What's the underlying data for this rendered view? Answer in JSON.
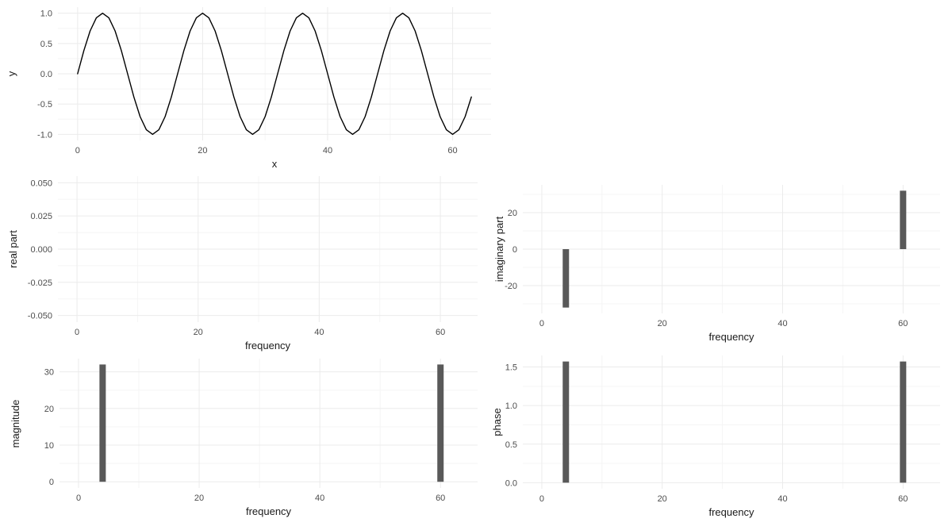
{
  "colors": {
    "background": "#ffffff",
    "bar_fill": "#595959",
    "line_stroke": "#000000",
    "grid_major": "#ebebeb",
    "grid_minor": "#f5f5f5",
    "tick_label": "#4d4d4d",
    "axis_title": "#1a1a1a"
  },
  "chart_data": [
    {
      "id": "wave",
      "type": "line",
      "xlabel": "x",
      "ylabel": "y",
      "xlim": [
        -3.15,
        66.15
      ],
      "ylim": [
        -1.1,
        1.1
      ],
      "xticks": [
        0,
        20,
        40,
        60
      ],
      "xtick_labels": [
        "0",
        "20",
        "40",
        "60"
      ],
      "xticks_minor": [
        10,
        30,
        50
      ],
      "yticks": [
        -1.0,
        -0.5,
        0.0,
        0.5,
        1.0
      ],
      "ytick_labels": [
        "-1.0",
        "-0.5",
        "0.0",
        "0.5",
        "1.0"
      ],
      "yticks_minor": [
        -0.75,
        -0.25,
        0.25,
        0.75
      ],
      "x": [
        0,
        1,
        2,
        3,
        4,
        5,
        6,
        7,
        8,
        9,
        10,
        11,
        12,
        13,
        14,
        15,
        16,
        17,
        18,
        19,
        20,
        21,
        22,
        23,
        24,
        25,
        26,
        27,
        28,
        29,
        30,
        31,
        32,
        33,
        34,
        35,
        36,
        37,
        38,
        39,
        40,
        41,
        42,
        43,
        44,
        45,
        46,
        47,
        48,
        49,
        50,
        51,
        52,
        53,
        54,
        55,
        56,
        57,
        58,
        59,
        60,
        61,
        62,
        63
      ],
      "y": [
        0,
        0.3827,
        0.7071,
        0.9239,
        1,
        0.9239,
        0.7071,
        0.3827,
        0,
        -0.3827,
        -0.7071,
        -0.9239,
        -1,
        -0.9239,
        -0.7071,
        -0.3827,
        0,
        0.3827,
        0.7071,
        0.9239,
        1,
        0.9239,
        0.7071,
        0.3827,
        0,
        -0.3827,
        -0.7071,
        -0.9239,
        -1,
        -0.9239,
        -0.7071,
        -0.3827,
        0,
        0.3827,
        0.7071,
        0.9239,
        1,
        0.9239,
        0.7071,
        0.3827,
        0,
        -0.3827,
        -0.7071,
        -0.9239,
        -1,
        -0.9239,
        -0.7071,
        -0.3827,
        0,
        0.3827,
        0.7071,
        0.9239,
        1,
        0.9239,
        0.7071,
        0.3827,
        0,
        -0.3827,
        -0.7071,
        -0.9239,
        -1,
        -0.9239,
        -0.7071,
        -0.3827
      ]
    },
    {
      "id": "real",
      "type": "bar",
      "xlabel": "frequency",
      "ylabel": "real part",
      "xlim": [
        -3.15,
        66.15
      ],
      "ylim": [
        -0.055,
        0.055
      ],
      "xticks": [
        0,
        20,
        40,
        60
      ],
      "xtick_labels": [
        "0",
        "20",
        "40",
        "60"
      ],
      "xticks_minor": [
        10,
        30,
        50
      ],
      "yticks": [
        -0.05,
        -0.025,
        0,
        0.025,
        0.05
      ],
      "ytick_labels": [
        "-0.050",
        "-0.025",
        "0.000",
        "0.025",
        "0.050"
      ],
      "yticks_minor": [
        -0.0375,
        -0.0125,
        0.0125,
        0.0375
      ],
      "bars": []
    },
    {
      "id": "imaginary",
      "type": "bar",
      "xlabel": "frequency",
      "ylabel": "imaginary part",
      "xlim": [
        -3.15,
        66.15
      ],
      "ylim": [
        -35.2,
        35.2
      ],
      "xticks": [
        0,
        20,
        40,
        60
      ],
      "xtick_labels": [
        "0",
        "20",
        "40",
        "60"
      ],
      "xticks_minor": [
        10,
        30,
        50
      ],
      "yticks": [
        -20,
        0,
        20
      ],
      "ytick_labels": [
        "-20",
        "0",
        "20"
      ],
      "yticks_minor": [
        -30,
        -10,
        10,
        30
      ],
      "bars": [
        {
          "x": 4,
          "y": -32
        },
        {
          "x": 60,
          "y": 32
        }
      ]
    },
    {
      "id": "magnitude",
      "type": "bar",
      "xlabel": "frequency",
      "ylabel": "magnitude",
      "xlim": [
        -3.15,
        66.15
      ],
      "ylim": [
        -1.68,
        33.6
      ],
      "xticks": [
        0,
        20,
        40,
        60
      ],
      "xtick_labels": [
        "0",
        "20",
        "40",
        "60"
      ],
      "xticks_minor": [
        10,
        30,
        50
      ],
      "yticks": [
        0,
        10,
        20,
        30
      ],
      "ytick_labels": [
        "0",
        "10",
        "20",
        "30"
      ],
      "yticks_minor": [
        5,
        15,
        25
      ],
      "bars": [
        {
          "x": 4,
          "y": 32
        },
        {
          "x": 60,
          "y": 32
        }
      ]
    },
    {
      "id": "phase",
      "type": "bar",
      "xlabel": "frequency",
      "ylabel": "phase",
      "xlim": [
        -3.15,
        66.15
      ],
      "ylim": [
        -0.0785,
        1.6493
      ],
      "xticks": [
        0,
        20,
        40,
        60
      ],
      "xtick_labels": [
        "0",
        "20",
        "40",
        "60"
      ],
      "xticks_minor": [
        10,
        30,
        50
      ],
      "yticks": [
        0,
        0.5,
        1.0,
        1.5
      ],
      "ytick_labels": [
        "0.0",
        "0.5",
        "1.0",
        "1.5"
      ],
      "yticks_minor": [
        0.25,
        0.75,
        1.25
      ],
      "bars": [
        {
          "x": 4,
          "y": 1.5708
        },
        {
          "x": 60,
          "y": 1.5708
        }
      ]
    }
  ]
}
